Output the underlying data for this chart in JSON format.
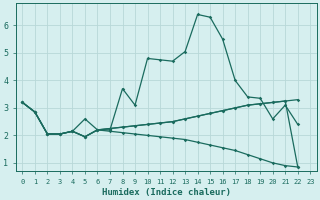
{
  "xlabel": "Humidex (Indice chaleur)",
  "xlim": [
    -0.5,
    23.5
  ],
  "ylim": [
    0.7,
    6.8
  ],
  "yticks": [
    1,
    2,
    3,
    4,
    5,
    6
  ],
  "xticks": [
    0,
    1,
    2,
    3,
    4,
    5,
    6,
    7,
    8,
    9,
    10,
    11,
    12,
    13,
    14,
    15,
    16,
    17,
    18,
    19,
    20,
    21,
    22,
    23
  ],
  "bg_color": "#d6efef",
  "grid_color": "#b8d8d8",
  "line_color": "#1a6b5e",
  "line1_x": [
    0,
    1,
    2,
    3,
    4,
    5,
    6,
    7,
    8,
    9,
    10,
    11,
    12,
    13,
    14,
    15,
    16,
    17,
    18,
    19,
    20,
    21,
    22
  ],
  "line1_y": [
    3.2,
    2.85,
    2.05,
    2.05,
    2.15,
    2.6,
    2.2,
    2.2,
    3.7,
    3.1,
    4.8,
    4.75,
    4.7,
    5.05,
    6.4,
    6.3,
    5.5,
    4.0,
    3.4,
    3.35,
    2.6,
    3.1,
    2.4
  ],
  "line2_x": [
    0,
    1,
    2,
    3,
    4,
    5,
    6,
    7,
    8,
    9,
    10,
    11,
    12,
    13,
    14,
    15,
    16,
    17,
    18,
    19,
    20,
    21,
    22
  ],
  "line2_y": [
    3.2,
    2.85,
    2.05,
    2.05,
    2.15,
    1.95,
    2.2,
    2.25,
    2.3,
    2.35,
    2.4,
    2.45,
    2.5,
    2.6,
    2.7,
    2.8,
    2.9,
    3.0,
    3.1,
    3.15,
    3.2,
    3.25,
    3.3
  ],
  "line3_x": [
    0,
    1,
    2,
    3,
    4,
    5,
    6,
    7,
    8,
    9,
    10,
    11,
    12,
    13,
    14,
    15,
    16,
    17,
    18,
    19,
    20,
    21,
    22
  ],
  "line3_y": [
    3.2,
    2.85,
    2.05,
    2.05,
    2.15,
    1.95,
    2.2,
    2.25,
    2.3,
    2.35,
    2.4,
    2.45,
    2.5,
    2.6,
    2.7,
    2.8,
    2.9,
    3.0,
    3.1,
    3.15,
    3.2,
    3.25,
    0.85
  ],
  "line4_x": [
    0,
    1,
    2,
    3,
    4,
    5,
    6,
    7,
    8,
    9,
    10,
    11,
    12,
    13,
    14,
    15,
    16,
    17,
    18,
    19,
    20,
    21,
    22
  ],
  "line4_y": [
    3.2,
    2.85,
    2.05,
    2.05,
    2.15,
    1.95,
    2.2,
    2.15,
    2.1,
    2.05,
    2.0,
    1.95,
    1.9,
    1.85,
    1.75,
    1.65,
    1.55,
    1.45,
    1.3,
    1.15,
    1.0,
    0.9,
    0.85
  ]
}
